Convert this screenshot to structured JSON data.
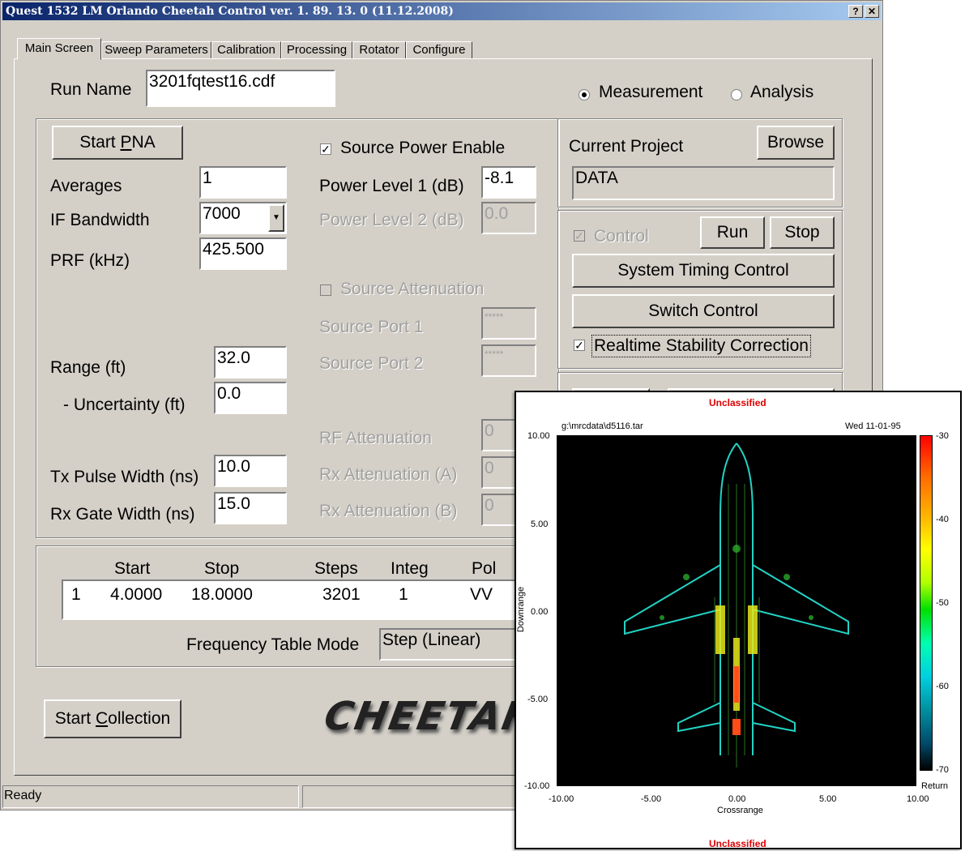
{
  "window": {
    "title": "Quest 1532 LM Orlando Cheetah Control ver. 1. 89. 13. 0  (11.12.2008)",
    "help_btn": "?",
    "close_btn": "✕"
  },
  "tabs": [
    "Main Screen",
    "Sweep Parameters",
    "Calibration",
    "Processing",
    "Rotator",
    "Configure"
  ],
  "run_name": {
    "label": "Run Name",
    "value": "3201fqtest16.cdf"
  },
  "mode": {
    "measurement": "Measurement",
    "analysis": "Analysis",
    "selected": "measurement"
  },
  "pna": {
    "start_button_pre": "Start ",
    "start_button_ul": "P",
    "start_button_post": "NA",
    "averages_label": "Averages",
    "averages_value": "1",
    "if_bw_label": "IF Bandwidth",
    "if_bw_value": "7000",
    "prf_label": "PRF (kHz)",
    "prf_value": "425.500",
    "source_power_enable": "Source Power Enable",
    "power1_label": "Power Level 1 (dB)",
    "power1_value": "-8.1",
    "power2_label": "Power Level 2 (dB)",
    "power2_value": "0.0",
    "source_atten_label": "Source Attenuation",
    "port1_label": "Source Port 1",
    "port1_value": "*****",
    "port2_label": "Source Port 2",
    "port2_value": "*****",
    "range_label": "Range (ft)",
    "range_value": "32.0",
    "uncert_label": "- Uncertainty (ft)",
    "uncert_value": "0.0",
    "rf_atten_label": "RF Attenuation",
    "rf_atten_value": "0",
    "rxa_label": "Rx Attenuation (A)",
    "rxa_value": "0",
    "rxb_label": "Rx Attenuation (B)",
    "rxb_value": "0",
    "tx_label": "Tx Pulse Width (ns)",
    "tx_value": "10.0",
    "rx_label": "Rx Gate Width (ns)",
    "rx_value": "15.0"
  },
  "project": {
    "label": "Current Project",
    "browse": "Browse",
    "value": "DATA"
  },
  "control": {
    "control_label": "Control",
    "run": "Run",
    "stop": "Stop",
    "system_timing": "System Timing Control",
    "switch": "Switch Control",
    "realtime": "Realtime Stability Correction"
  },
  "freq_table": {
    "headers": [
      "Start",
      "Stop",
      "Steps",
      "Integ",
      "Pol"
    ],
    "row": [
      "1",
      "4.0000",
      "18.0000",
      "3201",
      "1",
      "VV"
    ],
    "mode_label": "Frequency Table Mode",
    "mode_value": "Step (Linear)"
  },
  "start_collection": {
    "pre": "Start ",
    "ul": "C",
    "post": "ollection"
  },
  "logo": "CHEETAH",
  "status": "Ready",
  "plot": {
    "classification": "Unclassified",
    "file": "g:\\mrcdata\\d5116.tar",
    "date": "Wed  11-01-95",
    "ylabel": "Downrange",
    "xlabel": "Crossrange",
    "colorbar_label": "Return",
    "colorbar_ticks": [
      "-30",
      "-40",
      "-50",
      "-60",
      "-70"
    ],
    "xticks": [
      "-10.00",
      "-5.00",
      "0.00",
      "5.00",
      "10.00"
    ],
    "yticks": [
      "10.00",
      "5.00",
      "0.00",
      "-5.00",
      "-10.00"
    ]
  }
}
